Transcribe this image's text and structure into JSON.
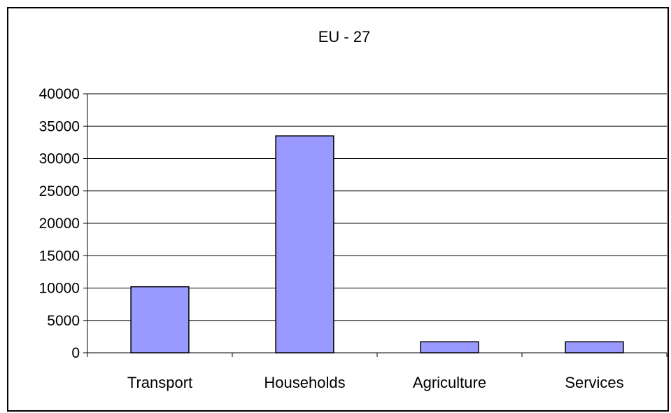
{
  "chart_data": {
    "type": "bar",
    "title": "EU - 27",
    "categories": [
      "Transport",
      "Households",
      "Agriculture",
      "Services"
    ],
    "values": [
      10200,
      33500,
      1700,
      1700
    ],
    "ylim": [
      0,
      40000
    ],
    "yticks": [
      0,
      5000,
      10000,
      15000,
      20000,
      25000,
      30000,
      35000,
      40000
    ],
    "grid": true,
    "legend": "none",
    "colors": {
      "bar": "#9999ff",
      "bar_stroke": "#000000",
      "grid": "#000000",
      "axis": "#000000"
    }
  }
}
